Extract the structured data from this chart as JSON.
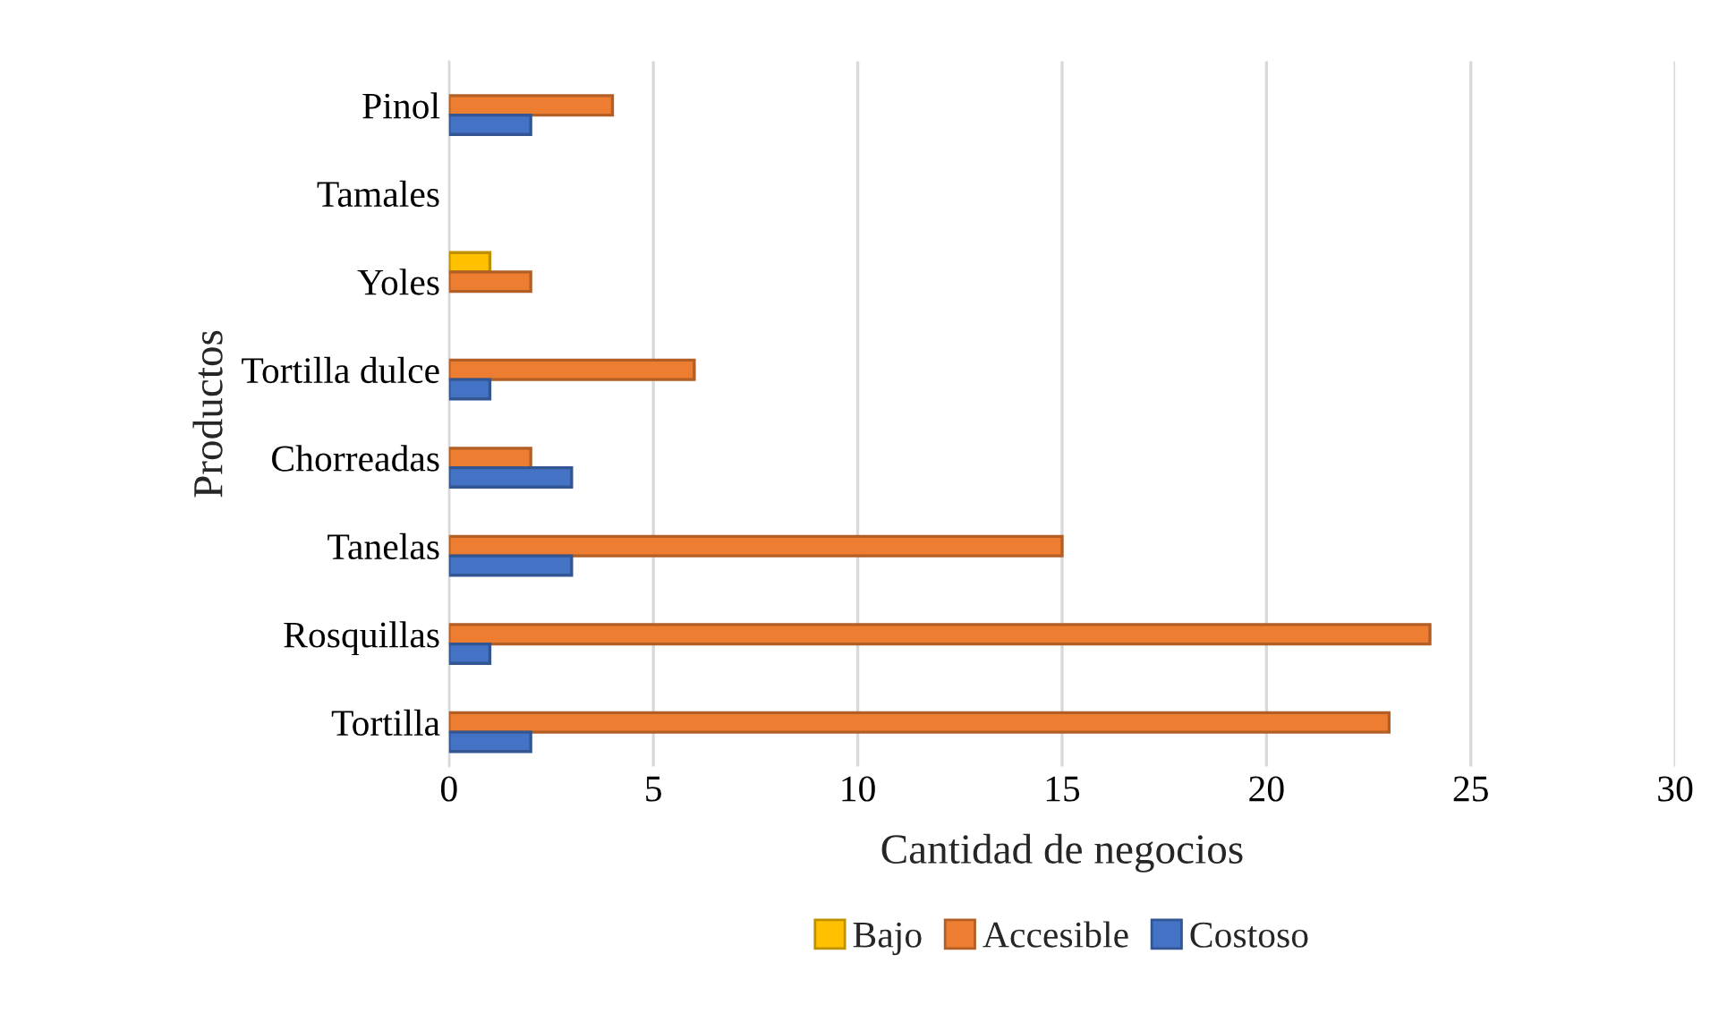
{
  "chart_data": {
    "type": "bar",
    "orientation": "horizontal",
    "categories": [
      "Pinol",
      "Tamales",
      "Yoles",
      "Tortilla dulce",
      "Chorreadas",
      "Tanelas",
      "Rosquillas",
      "Tortilla"
    ],
    "series": [
      {
        "name": "Bajo",
        "color": "#ffc000",
        "values": [
          null,
          null,
          1,
          null,
          null,
          null,
          null,
          null
        ]
      },
      {
        "name": "Accesible",
        "color": "#ed7d31",
        "values": [
          4,
          null,
          2,
          6,
          2,
          15,
          24,
          23
        ]
      },
      {
        "name": "Costoso",
        "color": "#4472c4",
        "values": [
          2,
          null,
          null,
          1,
          3,
          3,
          1,
          2
        ]
      }
    ],
    "xlabel": "Cantidad de negocios",
    "ylabel": "Productos",
    "xlim": [
      0,
      30
    ],
    "xticks": [
      0,
      5,
      10,
      15,
      20,
      25,
      30
    ],
    "grid": "x",
    "legend": "bottom"
  }
}
